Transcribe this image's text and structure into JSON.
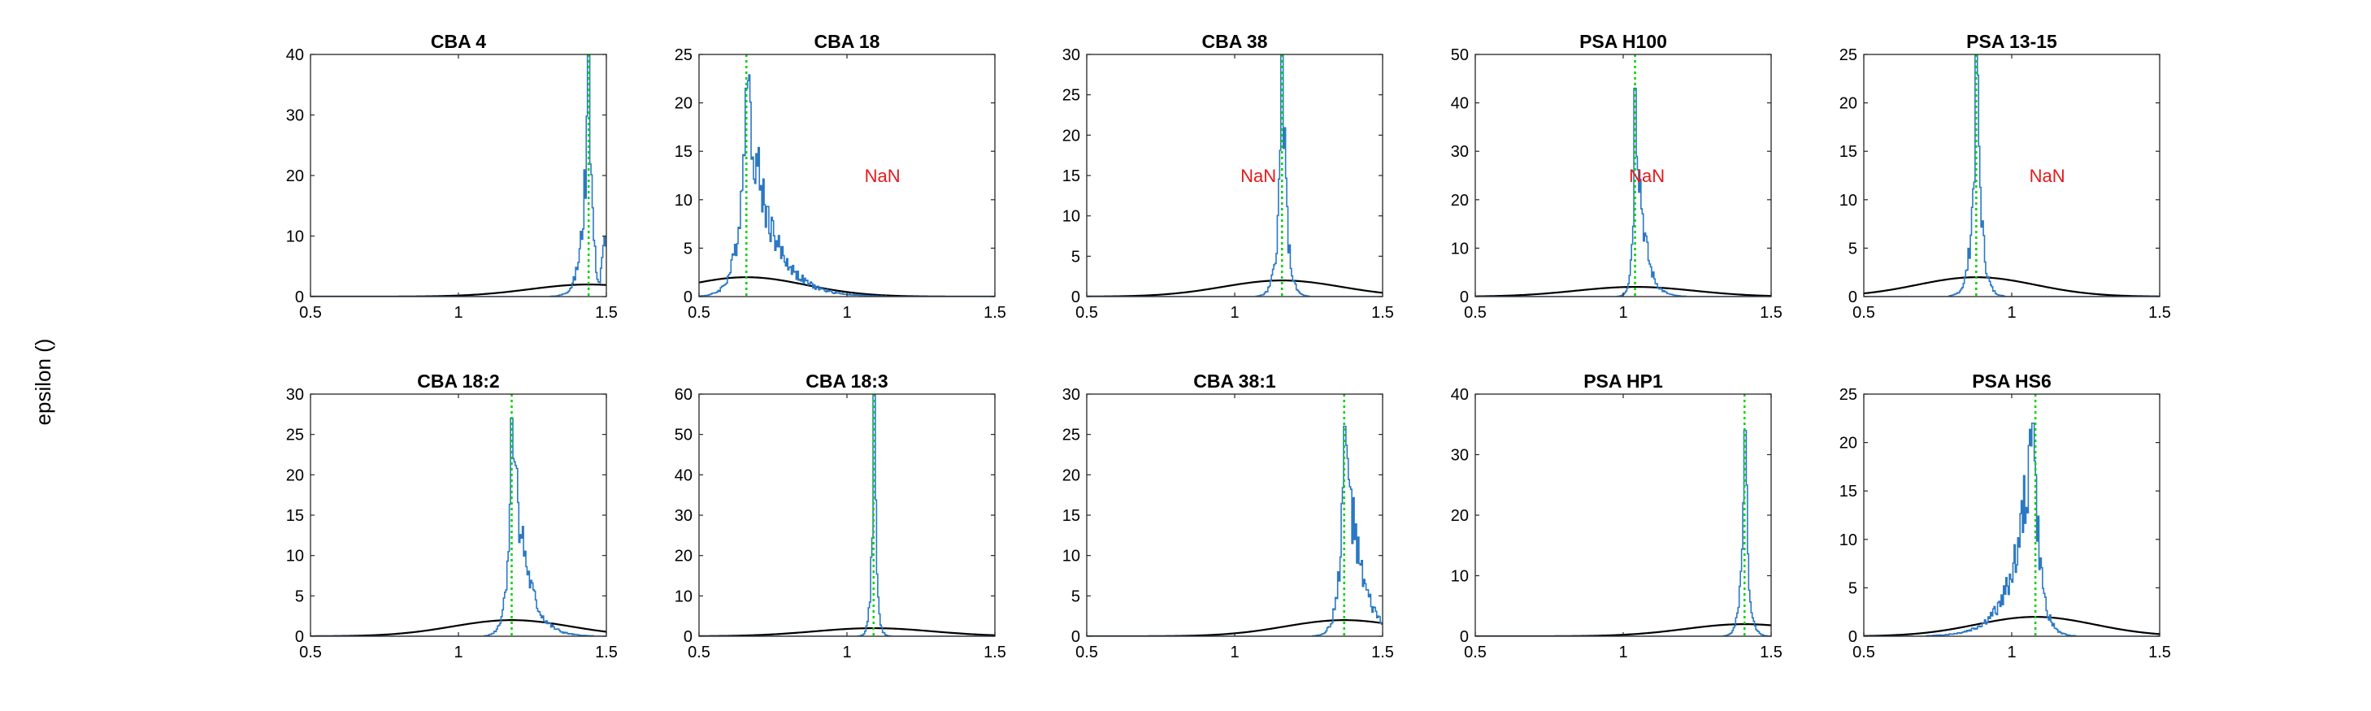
{
  "figure": {
    "ylabel": "epsilon ()",
    "colors": {
      "histogram": "#2b78c4",
      "median_line": "#00d400",
      "gaussian": "#000000",
      "annotation": "#e31a1c",
      "axes": "#262626"
    }
  },
  "chart_data": [
    {
      "type": "line",
      "title": "CBA 4",
      "xlim": [
        0.5,
        1.5
      ],
      "ylim": [
        0,
        40
      ],
      "xticks": [
        0.5,
        1,
        1.5
      ],
      "yticks": [
        0,
        10,
        20,
        30,
        40
      ],
      "peak_x": 1.44,
      "peak_y": 40,
      "spread": 0.025,
      "tail": "right-rise",
      "median_x": 1.44,
      "gaussian": {
        "mu": 1.44,
        "sigma": 0.2,
        "peak": 2.0
      },
      "annotation": ""
    },
    {
      "type": "line",
      "title": "CBA 18",
      "xlim": [
        0.5,
        1.5
      ],
      "ylim": [
        0,
        25
      ],
      "xticks": [
        0.5,
        1,
        1.5
      ],
      "yticks": [
        0,
        5,
        10,
        15,
        20,
        25
      ],
      "peak_x": 0.66,
      "peak_y": 21.5,
      "spread": 0.035,
      "tail": "right",
      "median_x": 0.66,
      "gaussian": {
        "mu": 0.66,
        "sigma": 0.2,
        "peak": 2.0
      },
      "annotation": "NaN"
    },
    {
      "type": "line",
      "title": "CBA 38",
      "xlim": [
        0.5,
        1.5
      ],
      "ylim": [
        0,
        30
      ],
      "xticks": [
        0.5,
        1,
        1.5
      ],
      "yticks": [
        0,
        5,
        10,
        15,
        20,
        25,
        30
      ],
      "peak_x": 1.16,
      "peak_y": 30,
      "spread": 0.018,
      "tail": "none",
      "median_x": 1.16,
      "gaussian": {
        "mu": 1.16,
        "sigma": 0.2,
        "peak": 2.0
      },
      "annotation": "NaN"
    },
    {
      "type": "line",
      "title": "PSA H100",
      "xlim": [
        0.5,
        1.5
      ],
      "ylim": [
        0,
        50
      ],
      "xticks": [
        0.5,
        1,
        1.5
      ],
      "yticks": [
        0,
        10,
        20,
        30,
        40,
        50
      ],
      "peak_x": 1.04,
      "peak_y": 43,
      "spread": 0.012,
      "tail": "right",
      "median_x": 1.04,
      "gaussian": {
        "mu": 1.04,
        "sigma": 0.2,
        "peak": 2.0
      },
      "annotation": "NaN"
    },
    {
      "type": "line",
      "title": "PSA 13-15",
      "xlim": [
        0.5,
        1.5
      ],
      "ylim": [
        0,
        25
      ],
      "xticks": [
        0.5,
        1,
        1.5
      ],
      "yticks": [
        0,
        5,
        10,
        15,
        20,
        25
      ],
      "peak_x": 0.88,
      "peak_y": 25,
      "spread": 0.02,
      "tail": "none",
      "median_x": 0.88,
      "gaussian": {
        "mu": 0.88,
        "sigma": 0.2,
        "peak": 2.0
      },
      "annotation": "NaN"
    },
    {
      "type": "line",
      "title": "CBA 18:2",
      "xlim": [
        0.5,
        1.5
      ],
      "ylim": [
        0,
        30
      ],
      "xticks": [
        0.5,
        1,
        1.5
      ],
      "yticks": [
        0,
        5,
        10,
        15,
        20,
        25,
        30
      ],
      "peak_x": 1.18,
      "peak_y": 27,
      "spread": 0.02,
      "tail": "right",
      "median_x": 1.18,
      "gaussian": {
        "mu": 1.18,
        "sigma": 0.2,
        "peak": 2.0
      },
      "annotation": ""
    },
    {
      "type": "line",
      "title": "CBA 18:3",
      "xlim": [
        0.5,
        1.5
      ],
      "ylim": [
        0,
        60
      ],
      "xticks": [
        0.5,
        1,
        1.5
      ],
      "yticks": [
        0,
        10,
        20,
        30,
        40,
        50,
        60
      ],
      "peak_x": 1.09,
      "peak_y": 60,
      "spread": 0.01,
      "tail": "none",
      "median_x": 1.09,
      "gaussian": {
        "mu": 1.09,
        "sigma": 0.2,
        "peak": 2.0
      },
      "annotation": ""
    },
    {
      "type": "line",
      "title": "CBA 38:1",
      "xlim": [
        0.5,
        1.5
      ],
      "ylim": [
        0,
        30
      ],
      "xticks": [
        0.5,
        1,
        1.5
      ],
      "yticks": [
        0,
        5,
        10,
        15,
        20,
        25,
        30
      ],
      "peak_x": 1.37,
      "peak_y": 26,
      "spread": 0.022,
      "tail": "right",
      "median_x": 1.37,
      "gaussian": {
        "mu": 1.37,
        "sigma": 0.2,
        "peak": 2.0
      },
      "annotation": ""
    },
    {
      "type": "line",
      "title": "PSA HP1",
      "xlim": [
        0.5,
        1.5
      ],
      "ylim": [
        0,
        40
      ],
      "xticks": [
        0.5,
        1,
        1.5
      ],
      "yticks": [
        0,
        10,
        20,
        30,
        40
      ],
      "peak_x": 1.41,
      "peak_y": 34,
      "spread": 0.015,
      "tail": "none",
      "median_x": 1.41,
      "gaussian": {
        "mu": 1.41,
        "sigma": 0.2,
        "peak": 2.0
      },
      "annotation": ""
    },
    {
      "type": "line",
      "title": "PSA HS6",
      "xlim": [
        0.5,
        1.5
      ],
      "ylim": [
        0,
        25
      ],
      "xticks": [
        0.5,
        1,
        1.5
      ],
      "yticks": [
        0,
        5,
        10,
        15,
        20,
        25
      ],
      "peak_x": 1.07,
      "peak_y": 22,
      "spread": 0.03,
      "tail": "left",
      "median_x": 1.08,
      "gaussian": {
        "mu": 1.08,
        "sigma": 0.2,
        "peak": 2.0
      },
      "annotation": ""
    }
  ]
}
